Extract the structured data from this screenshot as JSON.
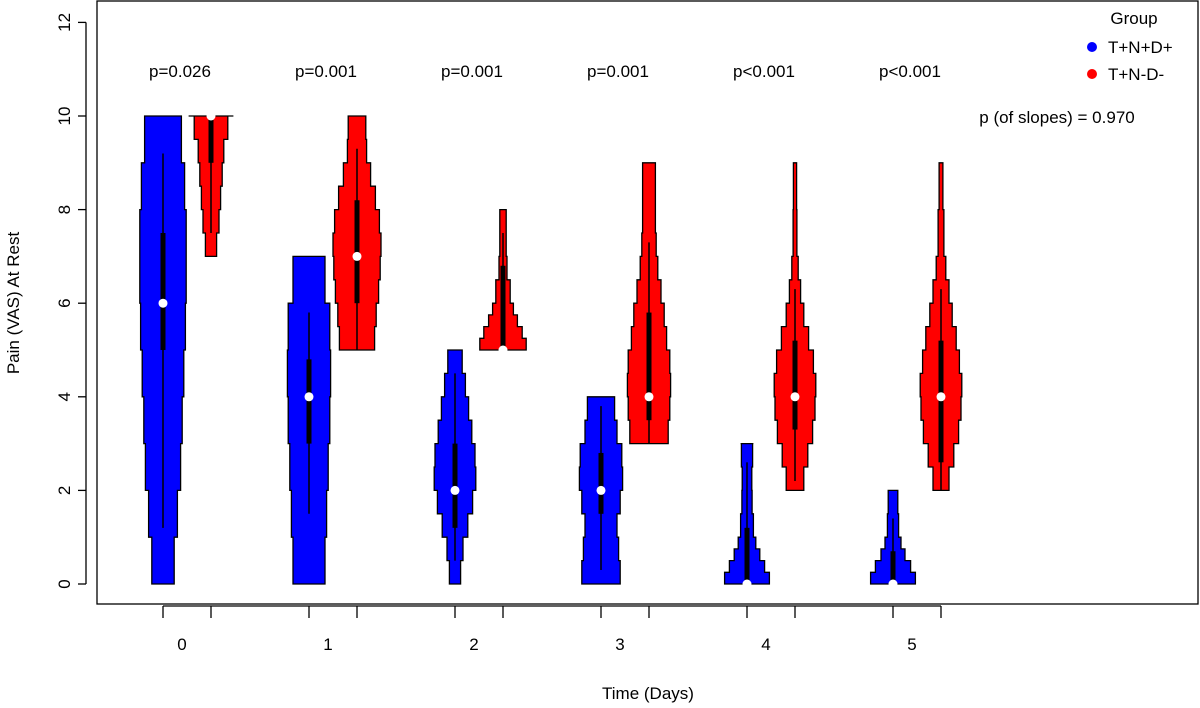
{
  "chart_data": {
    "type": "violin",
    "title": "",
    "xlabel": "Time (Days)",
    "ylabel": "Pain (VAS) At Rest",
    "ylim": [
      0,
      12
    ],
    "yticks": [
      0,
      2,
      4,
      6,
      8,
      10,
      12
    ],
    "xticks": [
      "0",
      "1",
      "2",
      "3",
      "4",
      "5"
    ],
    "legend": {
      "title": "Group",
      "position": "top-right",
      "entries": [
        "T+N+D+",
        "T+N-D-"
      ]
    },
    "colors": {
      "T+N+D+": "#0000ff",
      "T+N-D-": "#ff0000"
    },
    "p_values": [
      "p=0.026",
      "p=0.001",
      "p=0.001",
      "p=0.001",
      "p<0.001",
      "p<0.001"
    ],
    "slopes_annotation": "p (of slopes) = 0.970",
    "series": [
      {
        "name": "T+N+D+",
        "violins": [
          {
            "day": 0,
            "min": 0,
            "max": 10,
            "median": 6,
            "q1": 5,
            "q3": 7.5,
            "whisker_low": 1.2,
            "whisker_high": 9.2,
            "half_widths": [
              [
                0,
                0.7
              ],
              [
                1,
                0.9
              ],
              [
                2,
                1.1
              ],
              [
                3,
                1.2
              ],
              [
                4,
                1.3
              ],
              [
                5,
                1.4
              ],
              [
                6,
                1.45
              ],
              [
                7,
                1.45
              ],
              [
                8,
                1.35
              ],
              [
                9,
                1.15
              ],
              [
                10,
                1.0
              ]
            ]
          },
          {
            "day": 1,
            "min": 0,
            "max": 7,
            "median": 4,
            "q1": 3,
            "q3": 4.8,
            "whisker_low": 1.5,
            "whisker_high": 5.8,
            "half_widths": [
              [
                0,
                1.0
              ],
              [
                1,
                1.1
              ],
              [
                2,
                1.2
              ],
              [
                3,
                1.3
              ],
              [
                4,
                1.35
              ],
              [
                5,
                1.3
              ],
              [
                6,
                1.0
              ],
              [
                7,
                0.55
              ]
            ]
          },
          {
            "day": 2,
            "min": 0,
            "max": 5,
            "median": 2,
            "q1": 1.2,
            "q3": 3,
            "whisker_low": 0.5,
            "whisker_high": 4.5,
            "half_widths": [
              [
                0,
                0.35
              ],
              [
                0.5,
                0.5
              ],
              [
                1,
                0.8
              ],
              [
                1.5,
                1.1
              ],
              [
                2,
                1.3
              ],
              [
                2.5,
                1.25
              ],
              [
                3,
                1.05
              ],
              [
                3.5,
                0.85
              ],
              [
                4,
                0.65
              ],
              [
                4.5,
                0.45
              ],
              [
                5,
                0.4
              ]
            ]
          },
          {
            "day": 3,
            "min": 0,
            "max": 4,
            "median": 2,
            "q1": 1.5,
            "q3": 2.8,
            "whisker_low": 0.3,
            "whisker_high": 3.8,
            "half_widths": [
              [
                0,
                1.2
              ],
              [
                0.5,
                1.1
              ],
              [
                1,
                1.0
              ],
              [
                1.5,
                1.2
              ],
              [
                2,
                1.35
              ],
              [
                2.5,
                1.3
              ],
              [
                3,
                1.0
              ],
              [
                3.5,
                0.85
              ],
              [
                4,
                0.85
              ]
            ]
          },
          {
            "day": 4,
            "min": 0,
            "max": 3,
            "median": 0,
            "q1": 0,
            "q3": 1.2,
            "whisker_low": 0,
            "whisker_high": 2.6,
            "half_widths": [
              [
                0,
                1.4
              ],
              [
                0.25,
                1.1
              ],
              [
                0.5,
                0.8
              ],
              [
                0.75,
                0.55
              ],
              [
                1,
                0.4
              ],
              [
                1.5,
                0.32
              ],
              [
                2,
                0.3
              ],
              [
                2.5,
                0.35
              ],
              [
                3,
                0.4
              ]
            ]
          },
          {
            "day": 5,
            "min": 0,
            "max": 2,
            "median": 0,
            "q1": 0,
            "q3": 0.7,
            "whisker_low": 0,
            "whisker_high": 1.4,
            "half_widths": [
              [
                0,
                1.4
              ],
              [
                0.25,
                1.1
              ],
              [
                0.5,
                0.75
              ],
              [
                0.75,
                0.5
              ],
              [
                1,
                0.35
              ],
              [
                1.5,
                0.3
              ],
              [
                2,
                0.25
              ]
            ]
          }
        ]
      },
      {
        "name": "T+N-D-",
        "violins": [
          {
            "day": 0,
            "min": 7,
            "max": 10,
            "median": 10,
            "q1": 9,
            "q3": 10,
            "whisker_low": 7.5,
            "whisker_high": 10,
            "half_widths": [
              [
                7,
                0.35
              ],
              [
                7.5,
                0.5
              ],
              [
                8,
                0.6
              ],
              [
                8.5,
                0.7
              ],
              [
                9,
                0.8
              ],
              [
                9.5,
                1.05
              ],
              [
                10,
                1.4
              ]
            ]
          },
          {
            "day": 1,
            "min": 5,
            "max": 10,
            "median": 7,
            "q1": 6,
            "q3": 8.2,
            "whisker_low": 5,
            "whisker_high": 9.3,
            "half_widths": [
              [
                5,
                1.1
              ],
              [
                5.5,
                1.2
              ],
              [
                6,
                1.35
              ],
              [
                6.5,
                1.45
              ],
              [
                7,
                1.5
              ],
              [
                7.5,
                1.4
              ],
              [
                8,
                1.15
              ],
              [
                8.5,
                0.85
              ],
              [
                9,
                0.6
              ],
              [
                9.5,
                0.55
              ],
              [
                10,
                0.5
              ]
            ]
          },
          {
            "day": 2,
            "min": 5,
            "max": 8,
            "median": 5,
            "q1": 5,
            "q3": 6.8,
            "whisker_low": 5,
            "whisker_high": 7.5,
            "half_widths": [
              [
                5,
                1.45
              ],
              [
                5.25,
                1.2
              ],
              [
                5.5,
                0.9
              ],
              [
                5.75,
                0.65
              ],
              [
                6,
                0.45
              ],
              [
                6.5,
                0.25
              ],
              [
                7,
                0.2
              ],
              [
                7.5,
                0.2
              ],
              [
                8,
                0.2
              ]
            ]
          },
          {
            "day": 3,
            "min": 3,
            "max": 9,
            "median": 4,
            "q1": 3.5,
            "q3": 5.8,
            "whisker_low": 3,
            "whisker_high": 7.3,
            "half_widths": [
              [
                3,
                1.2
              ],
              [
                3.5,
                1.3
              ],
              [
                4,
                1.35
              ],
              [
                4.5,
                1.3
              ],
              [
                5,
                1.1
              ],
              [
                5.5,
                0.95
              ],
              [
                6,
                0.75
              ],
              [
                6.5,
                0.55
              ],
              [
                7,
                0.45
              ],
              [
                7.5,
                0.4
              ],
              [
                8,
                0.4
              ],
              [
                8.5,
                0.4
              ],
              [
                9,
                0.4
              ]
            ]
          },
          {
            "day": 4,
            "min": 2,
            "max": 9,
            "median": 4,
            "q1": 3.3,
            "q3": 5.2,
            "whisker_low": 2.2,
            "whisker_high": 6.3,
            "half_widths": [
              [
                2,
                0.55
              ],
              [
                2.5,
                0.8
              ],
              [
                3,
                1.1
              ],
              [
                3.5,
                1.25
              ],
              [
                4,
                1.3
              ],
              [
                4.5,
                1.15
              ],
              [
                5,
                0.85
              ],
              [
                5.5,
                0.55
              ],
              [
                6,
                0.35
              ],
              [
                6.5,
                0.2
              ],
              [
                7,
                0.12
              ],
              [
                8,
                0.1
              ],
              [
                9,
                0.1
              ]
            ]
          },
          {
            "day": 5,
            "min": 2,
            "max": 9,
            "median": 4,
            "q1": 2.6,
            "q3": 5.2,
            "whisker_low": 2,
            "whisker_high": 6.3,
            "half_widths": [
              [
                2,
                0.5
              ],
              [
                2.5,
                0.8
              ],
              [
                3,
                1.1
              ],
              [
                3.5,
                1.25
              ],
              [
                4,
                1.3
              ],
              [
                4.5,
                1.15
              ],
              [
                5,
                0.95
              ],
              [
                5.5,
                0.7
              ],
              [
                6,
                0.5
              ],
              [
                6.5,
                0.3
              ],
              [
                7,
                0.18
              ],
              [
                8,
                0.12
              ],
              [
                9,
                0.1
              ]
            ]
          }
        ]
      }
    ]
  }
}
